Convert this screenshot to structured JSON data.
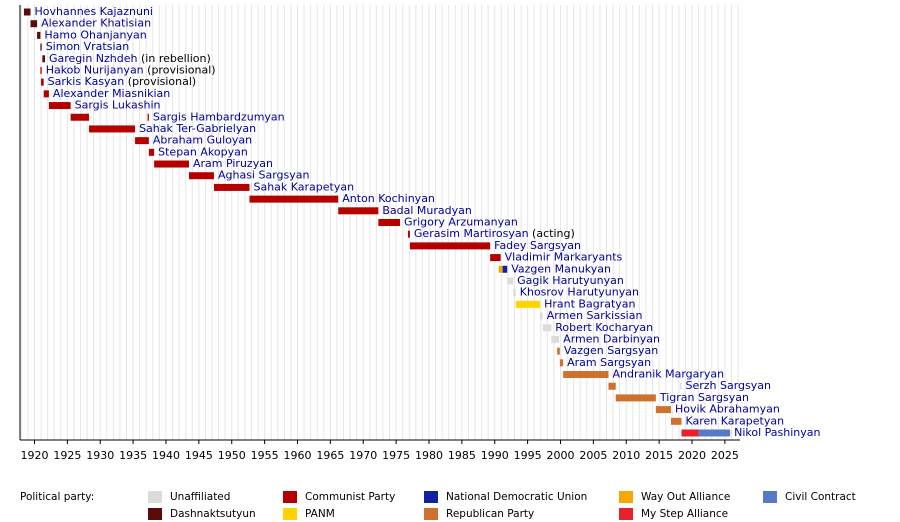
{
  "chart_data": {
    "type": "timeline",
    "legend_title": "Political party:",
    "xlim": [
      1917.8,
      2027.3
    ],
    "xticks": [
      1920,
      1925,
      1930,
      1935,
      1940,
      1945,
      1950,
      1955,
      1960,
      1965,
      1970,
      1975,
      1980,
      1985,
      1990,
      1995,
      2000,
      2005,
      2010,
      2015,
      2020,
      2025
    ],
    "xminorticks": [
      1918,
      1919,
      1920,
      1921,
      1922,
      1923,
      1924,
      1925,
      1926,
      1927,
      1928,
      1929,
      1930,
      1931,
      1932,
      1933,
      1934,
      1935,
      1936,
      1937,
      1938,
      1939,
      1940,
      1941,
      1942,
      1943,
      1944,
      1945,
      1946,
      1947,
      1948,
      1949,
      1950,
      1951,
      1952,
      1953,
      1954,
      1955,
      1956,
      1957,
      1958,
      1959,
      1960,
      1961,
      1962,
      1963,
      1964,
      1965,
      1966,
      1967,
      1968,
      1969,
      1970,
      1971,
      1972,
      1973,
      1974,
      1975,
      1976,
      1977,
      1978,
      1979,
      1980,
      1981,
      1982,
      1983,
      1984,
      1985,
      1986,
      1987,
      1988,
      1989,
      1990,
      1991,
      1992,
      1993,
      1994,
      1995,
      1996,
      1997,
      1998,
      1999,
      2000,
      2001,
      2002,
      2003,
      2004,
      2005,
      2006,
      2007,
      2008,
      2009,
      2010,
      2011,
      2012,
      2013,
      2014,
      2015,
      2016,
      2017,
      2018,
      2019,
      2020,
      2021,
      2022,
      2023,
      2024,
      2025,
      2026,
      2027
    ],
    "parties": [
      {
        "name": "Unaffiliated",
        "color": "#dcdcdc"
      },
      {
        "name": "Dashnaktsutyun",
        "color": "#5c0a0a"
      },
      {
        "name": "Communist Party",
        "color": "#b50000"
      },
      {
        "name": "PANM",
        "color": "#ffd200"
      },
      {
        "name": "National Democratic Union",
        "color": "#1020a0"
      },
      {
        "name": "Republican Party",
        "color": "#d0702e"
      },
      {
        "name": "Way Out Alliance",
        "color": "#f5a800"
      },
      {
        "name": "My Step Alliance",
        "color": "#e8202a"
      },
      {
        "name": "Civil Contract",
        "color": "#5a78c8"
      }
    ],
    "rows": [
      {
        "name": "Hovhannes Kajaznuni",
        "segments": [
          {
            "start": 1918.4,
            "end": 1919.4,
            "party": 1
          }
        ]
      },
      {
        "name": "Alexander Khatisian",
        "segments": [
          {
            "start": 1919.4,
            "end": 1920.4,
            "party": 1
          }
        ]
      },
      {
        "name": "Hamo Ohanjanyan",
        "segments": [
          {
            "start": 1920.4,
            "end": 1920.9,
            "party": 1
          }
        ]
      },
      {
        "name": "Simon Vratsian",
        "segments": [
          {
            "start": 1920.9,
            "end": 1921.1,
            "party": 1
          }
        ]
      },
      {
        "name": "Garegin Nzhdeh",
        "note": "(in rebellion)",
        "segments": [
          {
            "start": 1921.2,
            "end": 1921.6,
            "party": 1
          }
        ]
      },
      {
        "name": "Hakob Nurijanyan",
        "note": "(provisional)",
        "segments": [
          {
            "start": 1920.9,
            "end": 1921.1,
            "party": 2
          }
        ]
      },
      {
        "name": "Sarkis Kasyan",
        "note": "(provisional)",
        "segments": [
          {
            "start": 1921.0,
            "end": 1921.4,
            "party": 2
          }
        ]
      },
      {
        "name": "Alexander Miasnikian",
        "segments": [
          {
            "start": 1921.4,
            "end": 1922.2,
            "party": 2
          }
        ]
      },
      {
        "name": "Sargis Lukashin",
        "segments": [
          {
            "start": 1922.2,
            "end": 1925.5,
            "party": 2
          }
        ]
      },
      {
        "name": "Sargis Hambardzumyan",
        "segments": [
          {
            "start": 1925.5,
            "end": 1928.3,
            "party": 2
          },
          {
            "start": 1937.2,
            "end": 1937.4,
            "party": 2
          }
        ]
      },
      {
        "name": "Sahak Ter-Gabrielyan",
        "segments": [
          {
            "start": 1928.3,
            "end": 1935.3,
            "party": 2
          }
        ]
      },
      {
        "name": "Abraham Guloyan",
        "segments": [
          {
            "start": 1935.3,
            "end": 1937.4,
            "party": 2
          }
        ]
      },
      {
        "name": "Stepan Akopyan",
        "segments": [
          {
            "start": 1937.4,
            "end": 1938.2,
            "party": 2
          }
        ]
      },
      {
        "name": "Aram Piruzyan",
        "segments": [
          {
            "start": 1938.2,
            "end": 1943.5,
            "party": 2
          }
        ]
      },
      {
        "name": "Aghasi Sargsyan",
        "segments": [
          {
            "start": 1943.5,
            "end": 1947.3,
            "party": 2
          }
        ]
      },
      {
        "name": "Sahak Karapetyan",
        "segments": [
          {
            "start": 1947.3,
            "end": 1952.7,
            "party": 2
          }
        ]
      },
      {
        "name": "Anton Kochinyan",
        "segments": [
          {
            "start": 1952.7,
            "end": 1966.2,
            "party": 2
          }
        ]
      },
      {
        "name": "Badal Muradyan",
        "segments": [
          {
            "start": 1966.2,
            "end": 1972.3,
            "party": 2
          }
        ]
      },
      {
        "name": "Grigory Arzumanyan",
        "segments": [
          {
            "start": 1972.3,
            "end": 1975.6,
            "party": 2
          }
        ]
      },
      {
        "name": "Gerasim Martirosyan",
        "note": "(acting)",
        "segments": [
          {
            "start": 1976.8,
            "end": 1977.1,
            "party": 2
          }
        ]
      },
      {
        "name": "Fadey Sargsyan",
        "segments": [
          {
            "start": 1977.1,
            "end": 1989.3,
            "party": 2
          }
        ]
      },
      {
        "name": "Vladimir Markaryants",
        "segments": [
          {
            "start": 1989.3,
            "end": 1990.9,
            "party": 2
          }
        ]
      },
      {
        "name": "Vazgen Manukyan",
        "segments": [
          {
            "start": 1990.6,
            "end": 1991.2,
            "party": 6
          },
          {
            "start": 1991.2,
            "end": 1991.9,
            "party": 4
          }
        ]
      },
      {
        "name": "Gagik Harutyunyan",
        "segments": [
          {
            "start": 1991.9,
            "end": 1992.8,
            "party": 0
          }
        ]
      },
      {
        "name": "Khosrov Harutyunyan",
        "segments": [
          {
            "start": 1992.8,
            "end": 1993.2,
            "party": 0
          }
        ]
      },
      {
        "name": "Hrant Bagratyan",
        "segments": [
          {
            "start": 1993.2,
            "end": 1996.9,
            "party": 3
          }
        ]
      },
      {
        "name": "Armen Sarkissian",
        "segments": [
          {
            "start": 1996.9,
            "end": 1997.3,
            "party": 0
          }
        ]
      },
      {
        "name": "Robert Kocharyan",
        "segments": [
          {
            "start": 1997.3,
            "end": 1998.6,
            "party": 0
          }
        ]
      },
      {
        "name": "Armen Darbinyan",
        "segments": [
          {
            "start": 1998.6,
            "end": 1999.8,
            "party": 0
          }
        ]
      },
      {
        "name": "Vazgen Sargsyan",
        "segments": [
          {
            "start": 1999.5,
            "end": 1999.9,
            "party": 5
          }
        ]
      },
      {
        "name": "Aram Sargsyan",
        "segments": [
          {
            "start": 1999.9,
            "end": 2000.4,
            "party": 5
          }
        ]
      },
      {
        "name": "Andranik Margaryan",
        "segments": [
          {
            "start": 2000.4,
            "end": 2007.3,
            "party": 5
          }
        ]
      },
      {
        "name": "Serzh Sargsyan",
        "segments": [
          {
            "start": 2007.3,
            "end": 2008.4,
            "party": 5
          },
          {
            "start": 2018.2,
            "end": 2018.4,
            "party": 0
          }
        ]
      },
      {
        "name": "Tigran Sargsyan",
        "segments": [
          {
            "start": 2008.4,
            "end": 2014.5,
            "party": 5
          }
        ]
      },
      {
        "name": "Hovik Abrahamyan",
        "segments": [
          {
            "start": 2014.5,
            "end": 2016.8,
            "party": 5
          }
        ]
      },
      {
        "name": "Karen Karapetyan",
        "segments": [
          {
            "start": 2016.8,
            "end": 2018.4,
            "party": 5
          }
        ]
      },
      {
        "name": "Nikol Pashinyan",
        "segments": [
          {
            "start": 2018.4,
            "end": 2021.0,
            "party": 7
          },
          {
            "start": 2021.0,
            "end": 2025.8,
            "party": 8
          }
        ]
      }
    ]
  }
}
